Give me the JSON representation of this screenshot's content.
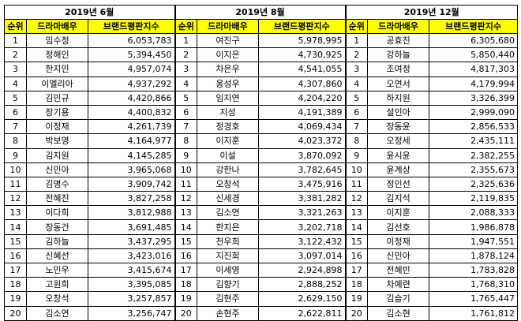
{
  "headers": {
    "rank": "순위",
    "actor": "드라마배우",
    "index": "브랜드평판지수"
  },
  "periods": [
    {
      "title": "2019년 6월",
      "rows": [
        {
          "rank": "1",
          "name": "임수정",
          "index": "6,053,783"
        },
        {
          "rank": "2",
          "name": "정해인",
          "index": "5,394,450"
        },
        {
          "rank": "3",
          "name": "한지민",
          "index": "4,957,074"
        },
        {
          "rank": "4",
          "name": "이엘리아",
          "index": "4,937,292"
        },
        {
          "rank": "5",
          "name": "김민규",
          "index": "4,420,866"
        },
        {
          "rank": "6",
          "name": "장기용",
          "index": "4,400,832"
        },
        {
          "rank": "7",
          "name": "이정재",
          "index": "4,261,739"
        },
        {
          "rank": "8",
          "name": "박보영",
          "index": "4,164,977"
        },
        {
          "rank": "9",
          "name": "김지원",
          "index": "4,145,285"
        },
        {
          "rank": "10",
          "name": "신민아",
          "index": "3,965,068"
        },
        {
          "rank": "11",
          "name": "김명수",
          "index": "3,909,742"
        },
        {
          "rank": "12",
          "name": "전혜진",
          "index": "3,827,258"
        },
        {
          "rank": "13",
          "name": "이다희",
          "index": "3,812,988"
        },
        {
          "rank": "14",
          "name": "장동건",
          "index": "3,691,485"
        },
        {
          "rank": "15",
          "name": "김하늘",
          "index": "3,437,295"
        },
        {
          "rank": "16",
          "name": "신혜선",
          "index": "3,423,016"
        },
        {
          "rank": "17",
          "name": "노민우",
          "index": "3,415,674"
        },
        {
          "rank": "18",
          "name": "고원희",
          "index": "3,395,085"
        },
        {
          "rank": "19",
          "name": "오창석",
          "index": "3,257,857"
        },
        {
          "rank": "20",
          "name": "김소연",
          "index": "3,256,747"
        }
      ]
    },
    {
      "title": "2019년 8월",
      "rows": [
        {
          "rank": "1",
          "name": "여진구",
          "index": "5,978,995"
        },
        {
          "rank": "2",
          "name": "이지은",
          "index": "4,730,925"
        },
        {
          "rank": "3",
          "name": "차은우",
          "index": "4,541,055"
        },
        {
          "rank": "4",
          "name": "옹성우",
          "index": "4,307,860"
        },
        {
          "rank": "5",
          "name": "임지연",
          "index": "4,204,220"
        },
        {
          "rank": "6",
          "name": "지성",
          "index": "4,191,389"
        },
        {
          "rank": "7",
          "name": "정경호",
          "index": "4,069,434"
        },
        {
          "rank": "8",
          "name": "이지훈",
          "index": "4,023,372"
        },
        {
          "rank": "9",
          "name": "이설",
          "index": "3,870,092"
        },
        {
          "rank": "10",
          "name": "강한나",
          "index": "3,782,645"
        },
        {
          "rank": "11",
          "name": "오창석",
          "index": "3,475,916"
        },
        {
          "rank": "12",
          "name": "신세경",
          "index": "3,381,282"
        },
        {
          "rank": "13",
          "name": "김소연",
          "index": "3,321,263"
        },
        {
          "rank": "14",
          "name": "한지은",
          "index": "3,202,718"
        },
        {
          "rank": "15",
          "name": "천우희",
          "index": "3,122,432"
        },
        {
          "rank": "16",
          "name": "지진희",
          "index": "3,097,014"
        },
        {
          "rank": "17",
          "name": "이세영",
          "index": "2,924,898"
        },
        {
          "rank": "18",
          "name": "김향기",
          "index": "2,888,252"
        },
        {
          "rank": "19",
          "name": "김현주",
          "index": "2,629,150"
        },
        {
          "rank": "20",
          "name": "손현주",
          "index": "2,622,811"
        }
      ]
    },
    {
      "title": "2019년 12월",
      "rows": [
        {
          "rank": "1",
          "name": "공효진",
          "index": "6,305,680"
        },
        {
          "rank": "2",
          "name": "강하늘",
          "index": "5,850,440"
        },
        {
          "rank": "3",
          "name": "조여정",
          "index": "4,817,303"
        },
        {
          "rank": "4",
          "name": "오연서",
          "index": "4,179,994"
        },
        {
          "rank": "5",
          "name": "하지원",
          "index": "3,326,399"
        },
        {
          "rank": "6",
          "name": "설인아",
          "index": "2,999,090"
        },
        {
          "rank": "7",
          "name": "장동윤",
          "index": "2,856,533"
        },
        {
          "rank": "8",
          "name": "오정세",
          "index": "2,435,111"
        },
        {
          "rank": "9",
          "name": "윤시윤",
          "index": "2,382,255"
        },
        {
          "rank": "10",
          "name": "윤계상",
          "index": "2,355,673"
        },
        {
          "rank": "11",
          "name": "정인선",
          "index": "2,325,636"
        },
        {
          "rank": "12",
          "name": "김지석",
          "index": "2,119,835"
        },
        {
          "rank": "13",
          "name": "이지훈",
          "index": "2,088,333"
        },
        {
          "rank": "14",
          "name": "김선호",
          "index": "1,986,878"
        },
        {
          "rank": "15",
          "name": "이정재",
          "index": "1,947,551"
        },
        {
          "rank": "16",
          "name": "신민아",
          "index": "1,878,124"
        },
        {
          "rank": "17",
          "name": "전혜빈",
          "index": "1,783,828"
        },
        {
          "rank": "18",
          "name": "차예련",
          "index": "1,768,310"
        },
        {
          "rank": "19",
          "name": "김슬기",
          "index": "1,765,447"
        },
        {
          "rank": "20",
          "name": "김소현",
          "index": "1,761,812"
        }
      ]
    }
  ],
  "colors": {
    "header_bg": "#ffff00",
    "border": "#000000"
  }
}
